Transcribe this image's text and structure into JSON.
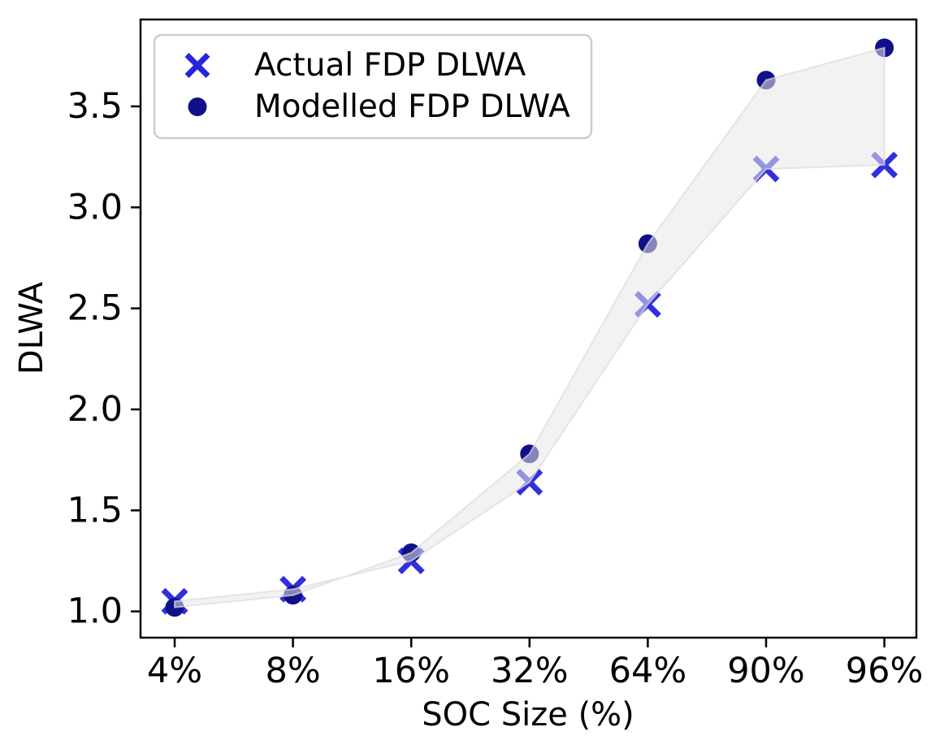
{
  "chart_data": {
    "type": "scatter",
    "title": "",
    "xlabel": "SOC Size (%)",
    "ylabel": "DLWA",
    "categories": [
      "4%",
      "8%",
      "16%",
      "32%",
      "64%",
      "90%",
      "96%"
    ],
    "series": [
      {
        "name": "Actual FDP DLWA",
        "marker": "x",
        "color": "#2525DC",
        "values": [
          1.05,
          1.11,
          1.25,
          1.64,
          2.52,
          3.19,
          3.21
        ]
      },
      {
        "name": "Modelled FDP DLWA",
        "marker": "circle",
        "color": "#10108B",
        "values": [
          1.02,
          1.08,
          1.29,
          1.78,
          2.82,
          3.63,
          3.79
        ]
      }
    ],
    "band": {
      "between": [
        1,
        0
      ],
      "fill": "#e8e8e8",
      "fill_opacity": 0.55,
      "edge": "#dcdcdc"
    },
    "yticks": {
      "values": [
        1.0,
        1.5,
        2.0,
        2.5,
        3.0,
        3.5
      ],
      "labels": [
        "1.0",
        "1.5",
        "2.0",
        "2.5",
        "3.0",
        "3.5"
      ]
    },
    "ylim": [
      0.87,
      3.93
    ],
    "grid": false,
    "legend": {
      "position": "upper left",
      "entries": [
        "Actual FDP DLWA",
        "Modelled FDP DLWA"
      ]
    },
    "axis_color": "#000000",
    "legend_border_color": "#cccccc"
  }
}
